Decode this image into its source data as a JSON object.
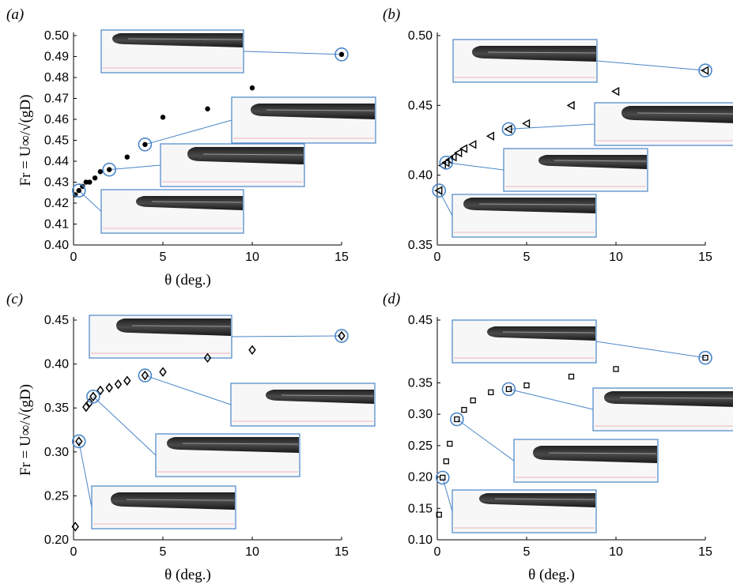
{
  "chart_data": [
    {
      "panel": "(a)",
      "type": "scatter",
      "marker": "dot",
      "xlabel": "θ (deg.)",
      "ylabel": "Fr = U∞/√(gD)",
      "xlim": [
        0,
        15
      ],
      "ylim": [
        0.4,
        0.5
      ],
      "xticks": [
        "0",
        "5",
        "10",
        "15"
      ],
      "yticks": [
        "0.40",
        "0.41",
        "0.42",
        "0.43",
        "0.44",
        "0.45",
        "0.46",
        "0.47",
        "0.48",
        "0.49",
        "0.50"
      ],
      "x": [
        0.1,
        0.3,
        0.5,
        0.7,
        0.9,
        1.2,
        1.5,
        2.0,
        3.0,
        4.0,
        5.0,
        7.5,
        10.0,
        15.0
      ],
      "y": [
        0.424,
        0.426,
        0.428,
        0.43,
        0.43,
        0.432,
        0.435,
        0.436,
        0.442,
        0.448,
        0.461,
        0.465,
        0.475,
        0.491
      ],
      "highlighted": [
        {
          "x": 0.3,
          "y": 0.426
        },
        {
          "x": 2.0,
          "y": 0.436
        },
        {
          "x": 4.0,
          "y": 0.448
        },
        {
          "x": 15.0,
          "y": 0.491
        }
      ]
    },
    {
      "panel": "(b)",
      "type": "scatter",
      "marker": "triangle-left",
      "xlabel": "",
      "ylabel": "",
      "xlim": [
        0,
        15
      ],
      "ylim": [
        0.35,
        0.5
      ],
      "xticks": [
        "0",
        "5",
        "10",
        "15"
      ],
      "yticks": [
        "0.35",
        "0.40",
        "0.45",
        "0.50"
      ],
      "x": [
        0.1,
        0.3,
        0.5,
        0.7,
        0.9,
        1.2,
        1.5,
        2.0,
        3.0,
        4.0,
        5.0,
        7.5,
        10.0,
        15.0
      ],
      "y": [
        0.389,
        0.407,
        0.409,
        0.411,
        0.413,
        0.416,
        0.419,
        0.422,
        0.428,
        0.433,
        0.437,
        0.45,
        0.46,
        0.475
      ],
      "highlighted": [
        {
          "x": 0.1,
          "y": 0.389
        },
        {
          "x": 0.5,
          "y": 0.409
        },
        {
          "x": 4.0,
          "y": 0.433
        },
        {
          "x": 15.0,
          "y": 0.475
        }
      ]
    },
    {
      "panel": "(c)",
      "type": "scatter",
      "marker": "diamond",
      "xlabel": "θ (deg.)",
      "ylabel": "Fr = U∞/√(gD)",
      "xlim": [
        0,
        15
      ],
      "ylim": [
        0.2,
        0.45
      ],
      "xticks": [
        "0",
        "5",
        "10",
        "15"
      ],
      "yticks": [
        "0.20",
        "0.25",
        "0.30",
        "0.35",
        "0.40",
        "0.45"
      ],
      "x": [
        0.1,
        0.3,
        0.7,
        0.9,
        1.1,
        1.5,
        2.0,
        2.5,
        3.0,
        4.0,
        5.0,
        7.5,
        10.0,
        15.0
      ],
      "y": [
        0.215,
        0.312,
        0.351,
        0.356,
        0.363,
        0.37,
        0.373,
        0.377,
        0.381,
        0.387,
        0.391,
        0.407,
        0.416,
        0.432
      ],
      "highlighted": [
        {
          "x": 0.3,
          "y": 0.312
        },
        {
          "x": 1.1,
          "y": 0.363
        },
        {
          "x": 4.0,
          "y": 0.387
        },
        {
          "x": 15.0,
          "y": 0.432
        }
      ]
    },
    {
      "panel": "(d)",
      "type": "scatter",
      "marker": "square",
      "xlabel": "θ (deg.)",
      "ylabel": "",
      "xlim": [
        0,
        15
      ],
      "ylim": [
        0.1,
        0.45
      ],
      "xticks": [
        "0",
        "5",
        "10",
        "15"
      ],
      "yticks": [
        "0.10",
        "0.15",
        "0.20",
        "0.25",
        "0.30",
        "0.35",
        "0.45"
      ],
      "x": [
        0.1,
        0.3,
        0.5,
        0.7,
        1.1,
        1.5,
        2.0,
        3.0,
        4.0,
        5.0,
        7.5,
        10.0,
        15.0
      ],
      "y": [
        0.14,
        0.199,
        0.225,
        0.253,
        0.292,
        0.307,
        0.322,
        0.335,
        0.34,
        0.346,
        0.36,
        0.372,
        0.39
      ],
      "highlighted": [
        {
          "x": 0.3,
          "y": 0.199
        },
        {
          "x": 1.1,
          "y": 0.292
        },
        {
          "x": 4.0,
          "y": 0.34
        },
        {
          "x": 15.0,
          "y": 0.39
        }
      ]
    }
  ]
}
